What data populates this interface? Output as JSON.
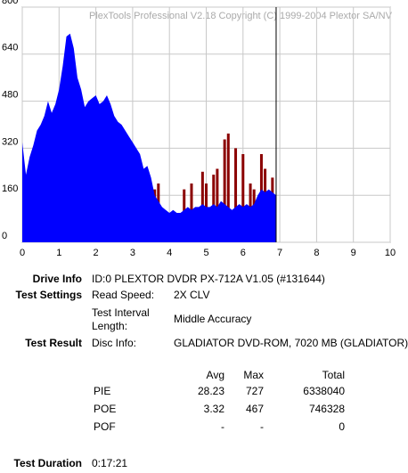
{
  "chart_data": {
    "type": "area",
    "watermark": "PlexTools Professional V2.18 Copyright (C) 1999-2004 Plextor SA/NV",
    "xlim": [
      0,
      10
    ],
    "xticks": [
      0,
      1,
      2,
      3,
      4,
      5,
      6,
      7,
      8,
      9,
      10
    ],
    "ylim": [
      0,
      800
    ],
    "yticks": [
      0,
      160,
      320,
      480,
      640,
      800
    ],
    "grid": true,
    "cursor_x": 6.9,
    "series": [
      {
        "color": "#0000ff",
        "style": "area",
        "x": [
          0.0,
          0.1,
          0.2,
          0.3,
          0.4,
          0.5,
          0.6,
          0.7,
          0.8,
          0.9,
          1.0,
          1.1,
          1.2,
          1.3,
          1.4,
          1.5,
          1.6,
          1.7,
          1.8,
          1.9,
          2.0,
          2.1,
          2.2,
          2.3,
          2.4,
          2.5,
          2.6,
          2.7,
          2.8,
          2.9,
          3.0,
          3.1,
          3.2,
          3.3,
          3.4,
          3.5,
          3.6,
          3.7,
          3.8,
          3.9,
          4.0,
          4.1,
          4.2,
          4.3,
          4.4,
          4.5,
          4.6,
          4.7,
          4.8,
          4.9,
          5.0,
          5.1,
          5.2,
          5.3,
          5.4,
          5.5,
          5.6,
          5.7,
          5.8,
          5.9,
          6.0,
          6.1,
          6.2,
          6.3,
          6.4,
          6.5,
          6.6,
          6.7,
          6.8,
          6.9
        ],
        "values": [
          340,
          230,
          290,
          330,
          380,
          400,
          430,
          480,
          440,
          470,
          520,
          600,
          700,
          710,
          660,
          560,
          520,
          460,
          480,
          490,
          500,
          470,
          480,
          500,
          470,
          430,
          410,
          400,
          380,
          360,
          340,
          320,
          300,
          250,
          260,
          220,
          160,
          140,
          120,
          110,
          100,
          110,
          100,
          100,
          110,
          120,
          110,
          120,
          120,
          130,
          120,
          120,
          130,
          120,
          140,
          130,
          120,
          110,
          120,
          130,
          120,
          130,
          120,
          130,
          160,
          180,
          170,
          180,
          170,
          160
        ]
      },
      {
        "color": "#8b0000",
        "style": "spikes",
        "x": [
          3.6,
          3.7,
          4.4,
          4.6,
          4.9,
          5.0,
          5.2,
          5.3,
          5.5,
          5.6,
          5.8,
          6.0,
          6.2,
          6.3,
          6.5,
          6.6,
          6.8
        ],
        "values": [
          180,
          200,
          180,
          200,
          240,
          200,
          230,
          250,
          350,
          370,
          320,
          300,
          200,
          180,
          300,
          250,
          220
        ]
      }
    ]
  },
  "report": {
    "drive_info": {
      "label": "Drive Info",
      "value": "ID:0 PLEXTOR DVDR PX-712A V1.05 (#131644)"
    },
    "test_settings": {
      "label": "Test Settings",
      "read_speed_label": "Read Speed:",
      "read_speed": "2X CLV",
      "interval_label": "Test Interval Length:",
      "interval": "Middle Accuracy"
    },
    "test_result": {
      "label": "Test Result",
      "disc_info_label": "Disc Info:",
      "disc_info": "GLADIATOR DVD-ROM, 7020 MB (GLADIATOR)"
    },
    "stats": {
      "header": [
        "Avg",
        "Max",
        "Total"
      ],
      "rows": [
        [
          "PIE",
          28.23,
          727,
          6338040
        ],
        [
          "POE",
          3.32,
          467,
          746328
        ],
        [
          "POF",
          "-",
          "-",
          0
        ]
      ]
    },
    "test_duration": {
      "label": "Test Duration",
      "value": "0:17:21"
    }
  }
}
